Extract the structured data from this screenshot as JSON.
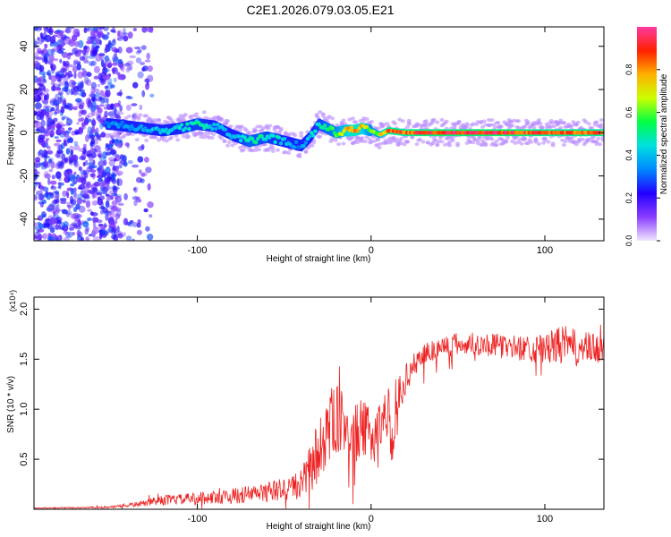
{
  "title": "C2E1.2026.079.03.05.E21",
  "chart_data": [
    {
      "type": "heatmap",
      "xlabel": "Height of straight line (km)",
      "ylabel": "Frequency (Hz)",
      "xlim": [
        -194,
        134
      ],
      "ylim": [
        -50,
        49
      ],
      "x_ticks": [
        -100,
        0,
        100
      ],
      "x_tick_labels": [
        "-100",
        "0",
        "100"
      ],
      "y_ticks": [
        40,
        20,
        0,
        -20,
        -40
      ],
      "y_tick_labels": [
        "40",
        "20",
        "0",
        "-20",
        "-40"
      ],
      "colorbar": {
        "label": "Normalized spectral amplitude",
        "range": [
          0,
          1
        ],
        "ticks": [
          0.0,
          0.2,
          0.4,
          0.6,
          0.8
        ],
        "tick_labels": [
          "0.0",
          "0.2",
          "0.4",
          "0.6",
          "0.8"
        ],
        "colors": [
          "#f0e6ff",
          "#8a3cff",
          "#2200ff",
          "#0088ff",
          "#00e0e0",
          "#00ff44",
          "#ccff00",
          "#ffb000",
          "#ff2000",
          "#ff3aa0"
        ]
      },
      "trace": {
        "x": [
          -150,
          -140,
          -130,
          -120,
          -110,
          -100,
          -90,
          -80,
          -70,
          -60,
          -50,
          -45,
          -40,
          -35,
          -30,
          -25,
          -20,
          -15,
          -10,
          -5,
          0,
          5,
          10,
          20,
          40,
          60,
          80,
          100,
          120,
          134
        ],
        "y": [
          4,
          3,
          2,
          1,
          2,
          4,
          3,
          -1,
          -4,
          -2,
          -4,
          -5,
          -6,
          -2,
          4,
          2,
          0,
          1,
          1,
          2,
          1,
          -1,
          1,
          0,
          0,
          0,
          0,
          0,
          0,
          0
        ],
        "amplitude": [
          0.35,
          0.38,
          0.4,
          0.45,
          0.45,
          0.5,
          0.45,
          0.4,
          0.55,
          0.5,
          0.45,
          0.4,
          0.35,
          0.45,
          0.5,
          0.55,
          0.6,
          0.75,
          0.85,
          0.8,
          0.6,
          0.7,
          0.9,
          0.9,
          0.95,
          0.95,
          0.95,
          0.9,
          0.9,
          0.9
        ]
      },
      "noise_region_x": [
        -194,
        -134
      ]
    },
    {
      "type": "line",
      "xlabel": "Height of straight line (km)",
      "ylabel": "SNR (10 * v/v)",
      "y_multiplier": "(x10⁴)",
      "xlim": [
        -194,
        134
      ],
      "ylim": [
        0.0,
        2.12
      ],
      "x_ticks": [
        -100,
        0,
        100
      ],
      "x_tick_labels": [
        "-100",
        "0",
        "100"
      ],
      "y_ticks": [
        0.5,
        1.0,
        1.5,
        2.0
      ],
      "y_tick_labels": [
        "0.5",
        "1.0",
        "1.5",
        "2.0"
      ],
      "color": "#ee2222",
      "series": [
        {
          "x": [
            -194,
            -150,
            -140,
            -130,
            -120,
            -110,
            -100,
            -90,
            -80,
            -70,
            -60,
            -50,
            -40,
            -35,
            -30,
            -25,
            -20,
            -15,
            -10,
            -5,
            0,
            5,
            10,
            12,
            15,
            20,
            25,
            30,
            40,
            50,
            60,
            80,
            100,
            110,
            120,
            134
          ],
          "y": [
            0.01,
            0.02,
            0.04,
            0.06,
            0.09,
            0.1,
            0.11,
            0.12,
            0.13,
            0.15,
            0.17,
            0.2,
            0.25,
            0.4,
            0.6,
            0.8,
            0.9,
            0.85,
            0.75,
            0.8,
            0.7,
            0.85,
            1.0,
            0.6,
            1.1,
            1.3,
            1.45,
            1.55,
            1.62,
            1.65,
            1.66,
            1.62,
            1.6,
            1.65,
            1.6,
            1.6
          ],
          "noise_amplitude": [
            0.005,
            0.01,
            0.02,
            0.03,
            0.05,
            0.05,
            0.06,
            0.07,
            0.08,
            0.09,
            0.1,
            0.12,
            0.15,
            0.25,
            0.35,
            0.4,
            0.35,
            0.3,
            0.3,
            0.3,
            0.3,
            0.25,
            0.25,
            0.2,
            0.2,
            0.15,
            0.12,
            0.12,
            0.12,
            0.12,
            0.12,
            0.12,
            0.15,
            0.2,
            0.18,
            0.15
          ]
        }
      ]
    }
  ]
}
